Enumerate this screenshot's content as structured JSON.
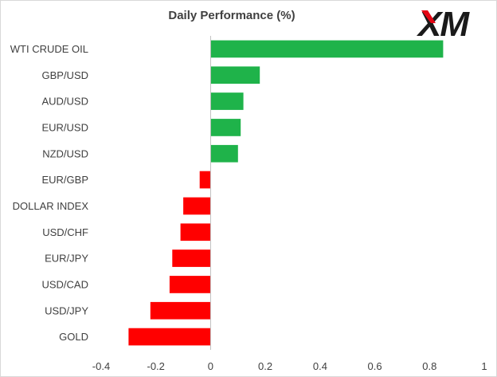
{
  "logo": {
    "text": "XM",
    "color": "#1a1a1a",
    "accent": "#e30613"
  },
  "chart_data": {
    "type": "bar",
    "orientation": "horizontal",
    "title": "Daily Performance  (%)",
    "categories": [
      "WTI CRUDE OIL",
      "GBP/USD",
      "AUD/USD",
      "EUR/USD",
      "NZD/USD",
      "EUR/GBP",
      "DOLLAR INDEX",
      "USD/CHF",
      "EUR/JPY",
      "USD/CAD",
      "USD/JPY",
      "GOLD"
    ],
    "values": [
      0.85,
      0.18,
      0.12,
      0.11,
      0.1,
      -0.04,
      -0.1,
      -0.11,
      -0.14,
      -0.15,
      -0.22,
      -0.3
    ],
    "xlim": [
      -0.4,
      1
    ],
    "xticks": [
      -0.4,
      -0.2,
      0,
      0.2,
      0.4,
      0.6,
      0.8,
      1
    ],
    "xtick_labels": [
      "-0.4",
      "-0.2",
      "0",
      "0.2",
      "0.4",
      "0.6",
      "0.8",
      "1"
    ],
    "colors": {
      "positive": "#1fb34a",
      "negative": "#ff0000",
      "axis": "#bfbfbf"
    },
    "grid": false,
    "legend": "none"
  }
}
